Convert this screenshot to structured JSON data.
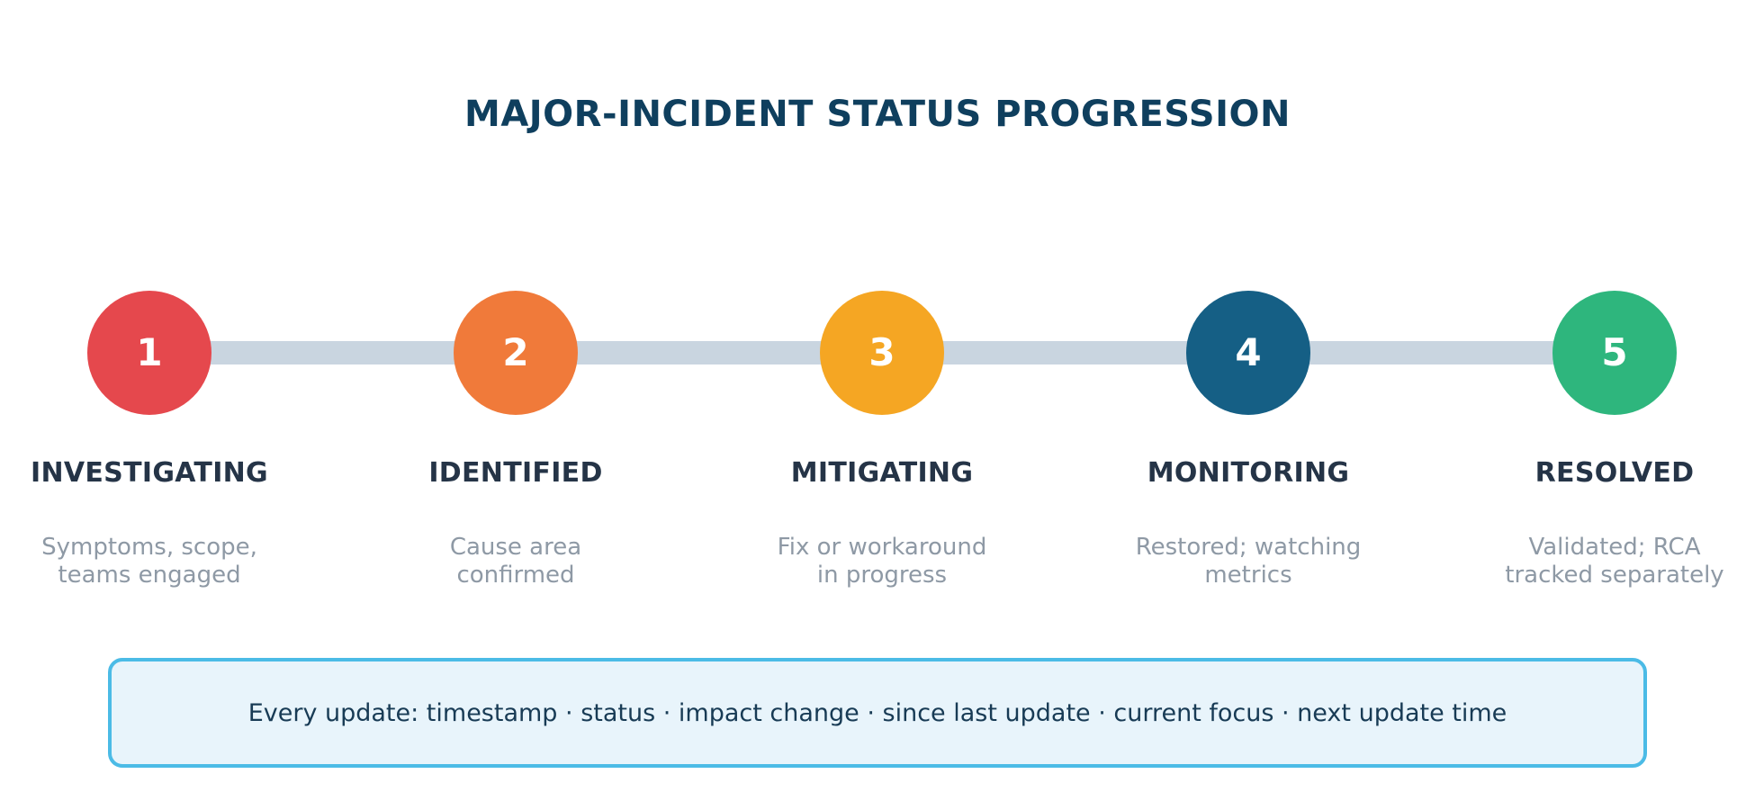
{
  "title": "MAJOR-INCIDENT STATUS PROGRESSION",
  "steps": [
    {
      "number": "1",
      "label": "INVESTIGATING",
      "desc": [
        "Symptoms, scope,",
        "teams engaged"
      ],
      "color": "#e5484d"
    },
    {
      "number": "2",
      "label": "IDENTIFIED",
      "desc": [
        "Cause area",
        "confirmed"
      ],
      "color": "#f07a3a"
    },
    {
      "number": "3",
      "label": "MITIGATING",
      "desc": [
        "Fix or workaround",
        "in progress"
      ],
      "color": "#f5a623"
    },
    {
      "number": "4",
      "label": "MONITORING",
      "desc": [
        "Restored; watching",
        "metrics"
      ],
      "color": "#155f85"
    },
    {
      "number": "5",
      "label": "RESOLVED",
      "desc": [
        "Validated; RCA",
        "tracked separately"
      ],
      "color": "#2eb67d"
    }
  ],
  "note": "Every update: timestamp · status · impact change · since last update · current focus · next update time",
  "colors": {
    "title": "#0f3f5e",
    "track": "#c9d5e0",
    "note_border": "#4bbbe6",
    "note_bg": "#e8f4fb"
  }
}
